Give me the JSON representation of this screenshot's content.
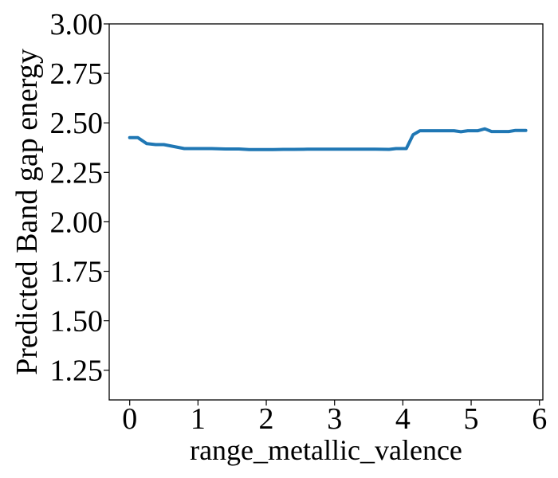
{
  "chart_data": {
    "type": "line",
    "title": "",
    "xlabel": "range_metallic_valence",
    "ylabel": "Predicted Band gap energy",
    "xlim": [
      -0.3,
      6.05
    ],
    "ylim": [
      1.1,
      3.0
    ],
    "x_ticks": [
      0,
      1,
      2,
      3,
      4,
      5,
      6
    ],
    "y_ticks": [
      1.25,
      1.5,
      1.75,
      2.0,
      2.25,
      2.5,
      2.75,
      3.0
    ],
    "x_tick_labels": [
      "0",
      "1",
      "2",
      "3",
      "4",
      "5",
      "6"
    ],
    "y_tick_labels": [
      "1.25",
      "1.50",
      "1.75",
      "2.00",
      "2.25",
      "2.50",
      "2.75",
      "3.00"
    ],
    "grid": false,
    "series": [
      {
        "color": "#1f77b4",
        "x": [
          0.0,
          0.12,
          0.25,
          0.38,
          0.5,
          0.65,
          0.8,
          1.0,
          1.2,
          1.4,
          1.6,
          1.75,
          1.9,
          2.1,
          2.25,
          2.4,
          2.6,
          2.8,
          3.0,
          3.2,
          3.4,
          3.6,
          3.8,
          3.9,
          4.05,
          4.15,
          4.25,
          4.4,
          4.6,
          4.75,
          4.85,
          4.95,
          5.1,
          5.2,
          5.3,
          5.45,
          5.55,
          5.65,
          5.8
        ],
        "y": [
          2.425,
          2.425,
          2.395,
          2.39,
          2.39,
          2.38,
          2.37,
          2.37,
          2.37,
          2.368,
          2.368,
          2.365,
          2.365,
          2.365,
          2.366,
          2.366,
          2.367,
          2.367,
          2.367,
          2.367,
          2.367,
          2.367,
          2.366,
          2.37,
          2.37,
          2.44,
          2.46,
          2.46,
          2.46,
          2.46,
          2.455,
          2.46,
          2.46,
          2.47,
          2.456,
          2.456,
          2.456,
          2.462,
          2.462
        ]
      }
    ]
  }
}
